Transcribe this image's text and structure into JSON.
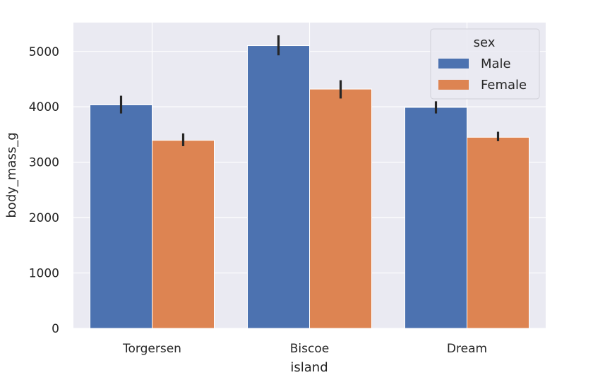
{
  "chart_data": {
    "type": "bar",
    "categories": [
      "Torgersen",
      "Biscoe",
      "Dream"
    ],
    "series": [
      {
        "name": "Male",
        "color": "#4c72b0",
        "values": [
          4035,
          5105,
          3990
        ],
        "ci_low": [
          3880,
          4930,
          3880
        ],
        "ci_high": [
          4200,
          5290,
          4100
        ]
      },
      {
        "name": "Female",
        "color": "#dd8452",
        "values": [
          3395,
          4320,
          3450
        ],
        "ci_low": [
          3290,
          4150,
          3380
        ],
        "ci_high": [
          3520,
          4480,
          3550
        ]
      }
    ],
    "xlabel": "island",
    "ylabel": "body_mass_g",
    "ylim": [
      0,
      5520
    ],
    "yticks": [
      "0",
      "1000",
      "2000",
      "3000",
      "4000",
      "5000"
    ],
    "grid": true,
    "legend": {
      "title": "sex",
      "position": "top-right"
    },
    "style": {
      "background": "#eaeaf2",
      "grid_color": "#ffffff",
      "error_color": "#262626"
    }
  }
}
